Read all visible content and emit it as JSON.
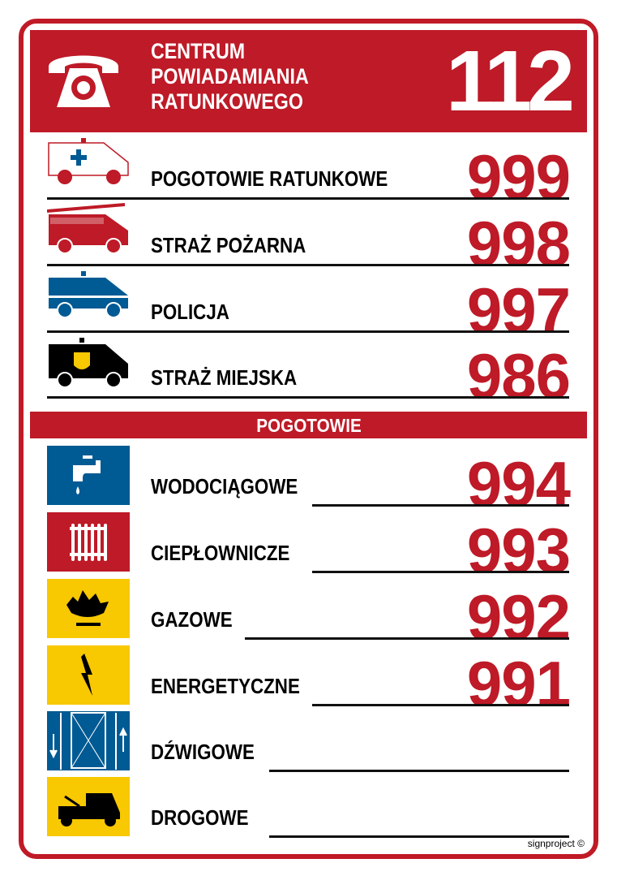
{
  "header": {
    "title": "CENTRUM\nPOWIADAMIANIA\nRATUNKOWEGO",
    "number": "112",
    "icon": "telephone-icon"
  },
  "services": [
    {
      "label": "POGOTOWIE RATUNKOWE",
      "number": "999",
      "icon": "ambulance-icon"
    },
    {
      "label": "STRAŻ POŻARNA",
      "number": "998",
      "icon": "fire-truck-icon"
    },
    {
      "label": "POLICJA",
      "number": "997",
      "icon": "police-car-icon"
    },
    {
      "label": "STRAŻ MIEJSKA",
      "number": "986",
      "icon": "city-guard-van-icon"
    }
  ],
  "section_title": "POGOTOWIE",
  "emergency": [
    {
      "label": "WODOCIĄGOWE",
      "number": "994",
      "icon": "water-tap-icon",
      "color": "#005a93"
    },
    {
      "label": "CIEPŁOWNICZE",
      "number": "993",
      "icon": "radiator-icon",
      "color": "#be1a27"
    },
    {
      "label": "GAZOWE",
      "number": "992",
      "icon": "gas-flame-icon",
      "color": "#f8c800"
    },
    {
      "label": "ENERGETYCZNE",
      "number": "991",
      "icon": "lightning-icon",
      "color": "#f8c800"
    },
    {
      "label": "DŹWIGOWE",
      "number": "",
      "icon": "elevator-icon",
      "color": "#005a93"
    },
    {
      "label": "DROGOWE",
      "number": "",
      "icon": "tow-truck-icon",
      "color": "#f8c800"
    }
  ],
  "credit": "signproject ©",
  "colors": {
    "red": "#be1a27",
    "blue": "#005a93",
    "yellow": "#f8c800"
  }
}
